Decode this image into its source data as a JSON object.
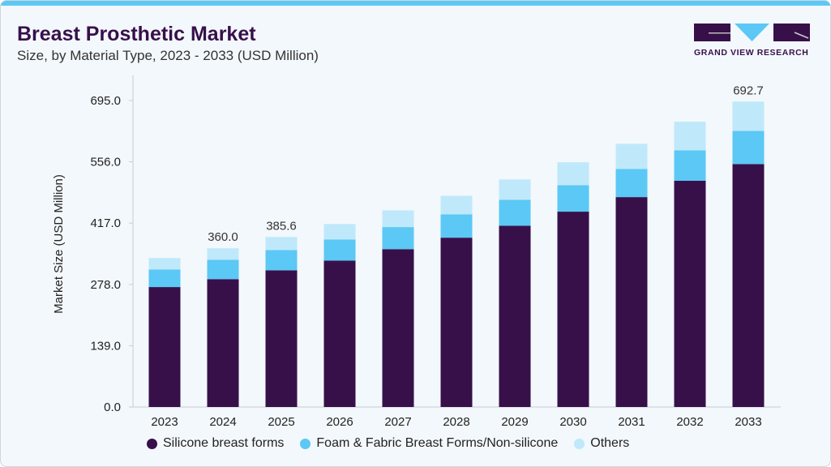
{
  "title": "Breast Prosthetic Market",
  "subtitle": "Size, by Material Type, 2023 - 2033 (USD Million)",
  "logo_text": "GRAND VIEW RESEARCH",
  "colors": {
    "silicone": "#37104a",
    "foam": "#5bc8f5",
    "others": "#bfe9fa",
    "accent": "#5bc8f5"
  },
  "chart_data": {
    "type": "bar",
    "stacked": true,
    "ylabel": "Market Size (USD Million)",
    "xlabel": "",
    "ylim": [
      0,
      695
    ],
    "yticks": [
      "0.0",
      "139.0",
      "278.0",
      "417.0",
      "556.0",
      "695.0"
    ],
    "categories": [
      "2023",
      "2024",
      "2025",
      "2026",
      "2027",
      "2028",
      "2029",
      "2030",
      "2031",
      "2032",
      "2033"
    ],
    "series": [
      {
        "name": "Silicone breast forms",
        "values": [
          272,
          290,
          310,
          332,
          358,
          384,
          411,
          443,
          476,
          513,
          551
        ]
      },
      {
        "name": "Foam & Fabric Breast Forms/Non-silicone",
        "values": [
          40,
          44,
          46,
          48,
          50,
          53,
          59,
          60,
          64,
          69,
          75
        ]
      },
      {
        "name": "Others",
        "values": [
          26,
          26,
          29.6,
          35,
          38,
          42,
          46,
          52,
          57,
          65,
          66.7
        ]
      }
    ],
    "data_labels": {
      "2024": "360.0",
      "2025": "385.6",
      "2033": "692.7"
    },
    "legend": "bottom",
    "grid": false
  }
}
